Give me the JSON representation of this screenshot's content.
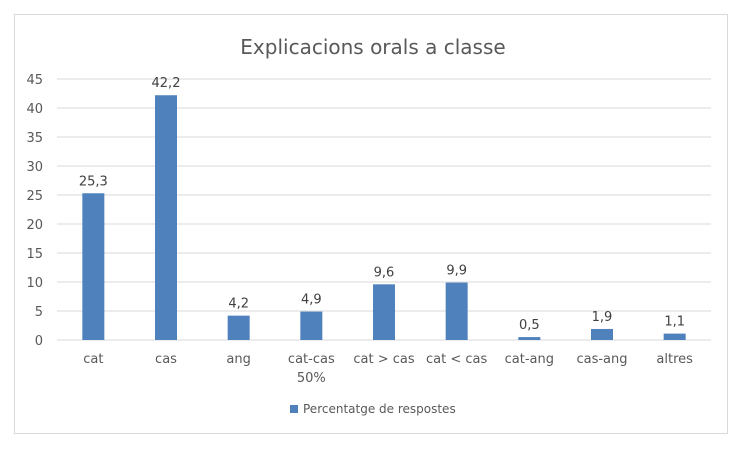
{
  "chart_data": {
    "type": "bar",
    "title": "Explicacions orals a classe",
    "categories": [
      "cat",
      "cas",
      "ang",
      "cat-cas\n50%",
      "cat > cas",
      "cat < cas",
      "cat-ang",
      "cas-ang",
      "altres"
    ],
    "series": [
      {
        "name": "Percentatge de respostes",
        "values": [
          25.3,
          42.2,
          4.2,
          4.9,
          9.6,
          9.9,
          0.5,
          1.9,
          1.1
        ],
        "labels": [
          "25,3",
          "42,2",
          "4,2",
          "4,9",
          "9,6",
          "9,9",
          "0,5",
          "1,9",
          "1,1"
        ],
        "color": "#4f81bd"
      }
    ],
    "ylim": [
      0,
      45
    ],
    "yticks": [
      0,
      5,
      10,
      15,
      20,
      25,
      30,
      35,
      40,
      45
    ],
    "grid": true,
    "legend": "bottom",
    "xlabel": "",
    "ylabel": ""
  }
}
